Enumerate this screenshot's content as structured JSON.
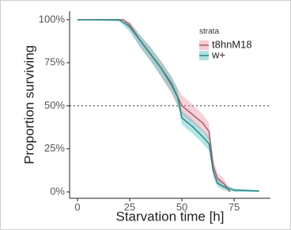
{
  "chart_data": {
    "type": "survival",
    "xlabel": "Starvation time [h]",
    "ylabel": "Proportion surviving",
    "legend_title": "strata",
    "legend": "top-right",
    "xlim": [
      -3.8,
      92.4
    ],
    "ylim": [
      -3.7,
      105
    ],
    "xticks": [
      0,
      25,
      50,
      75
    ],
    "yticks": [
      {
        "value": 0,
        "label": "0%"
      },
      {
        "value": 25,
        "label": "25%"
      },
      {
        "value": 50,
        "label": "50%"
      },
      {
        "value": 75,
        "label": "75%"
      },
      {
        "value": 100,
        "label": "100%"
      }
    ],
    "hline": 50,
    "series": [
      {
        "name": "t8hnM18",
        "color": "#e88aa0",
        "x": [
          0,
          22,
          25,
          30,
          35,
          40,
          45,
          48,
          50,
          55,
          60,
          63,
          65,
          67,
          70,
          73
        ],
        "values": [
          100,
          100,
          97,
          88,
          80,
          72,
          62,
          55,
          50,
          45,
          40,
          35,
          15,
          8,
          5,
          0
        ],
        "upper": [
          100,
          100,
          99,
          91,
          84,
          76,
          67,
          60,
          56,
          51,
          45,
          40,
          19,
          11,
          8,
          1
        ],
        "lower": [
          100,
          99,
          94,
          84,
          76,
          67,
          57,
          50,
          45,
          40,
          35,
          30,
          11,
          5,
          2,
          0
        ]
      },
      {
        "name": "w+",
        "color": "#3fbfbc",
        "x": [
          0,
          20,
          25,
          30,
          35,
          40,
          45,
          48,
          50,
          55,
          60,
          63,
          65,
          67,
          70,
          75,
          87
        ],
        "values": [
          100,
          100,
          96,
          88,
          80,
          72,
          63,
          55,
          43,
          38,
          32,
          28,
          12,
          5,
          3,
          1,
          0.5
        ],
        "upper": [
          100,
          100,
          98,
          91,
          84,
          76,
          67,
          60,
          47,
          42,
          36,
          32,
          15,
          8,
          5,
          2,
          1
        ],
        "lower": [
          100,
          99,
          93,
          84,
          76,
          67,
          58,
          50,
          39,
          34,
          28,
          24,
          9,
          3,
          1,
          0,
          0
        ]
      }
    ]
  }
}
